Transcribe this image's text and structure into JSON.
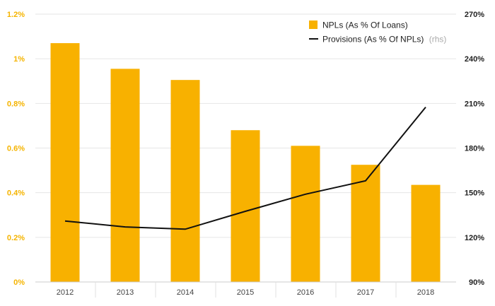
{
  "chart_data": {
    "type": "bar",
    "categories": [
      "2012",
      "2013",
      "2014",
      "2015",
      "2016",
      "2017",
      "2018"
    ],
    "series": [
      {
        "name": "NPLs (As % Of Loans)",
        "type": "bar",
        "axis": "left",
        "unit": "%",
        "values": [
          1.07,
          0.955,
          0.905,
          0.68,
          0.61,
          0.525,
          0.435
        ]
      },
      {
        "name": "Provisions (As % Of NPLs)",
        "name_suffix": "(rhs)",
        "type": "line",
        "axis": "right",
        "unit": "%",
        "values": [
          131,
          127,
          125.5,
          137.5,
          149,
          158,
          207.5
        ]
      }
    ],
    "y_left": {
      "ylim": [
        0,
        1.2
      ],
      "ticks": [
        0,
        0.2,
        0.4,
        0.6,
        0.8,
        1.0,
        1.2
      ],
      "tick_labels": [
        "0%",
        "0.2%",
        "0.4%",
        "0.6%",
        "0.8%",
        "1%",
        "1.2%"
      ]
    },
    "y_right": {
      "ylim": [
        90,
        270
      ],
      "ticks": [
        90,
        120,
        150,
        180,
        210,
        240,
        270
      ],
      "tick_labels": [
        "90%",
        "120%",
        "150%",
        "180%",
        "210%",
        "240%",
        "270%"
      ]
    },
    "legend": {
      "position": "top-right",
      "bar_label": "NPLs (As % Of Loans)",
      "line_label": "Provisions (As % Of NPLs)",
      "line_suffix": "(rhs)"
    },
    "colors": {
      "bar": "#f8b100",
      "line": "#111111",
      "grid": "#e6e6e6",
      "left_axis_text": "#f5b400"
    },
    "grid": true
  }
}
